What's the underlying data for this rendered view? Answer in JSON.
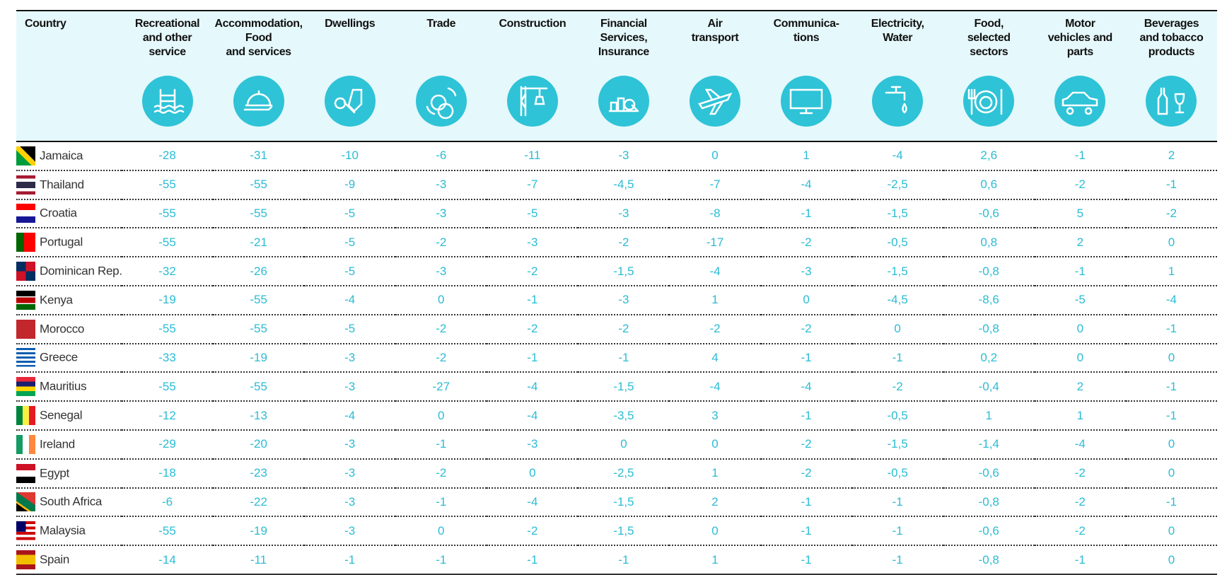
{
  "table": {
    "columns": [
      [
        "Country"
      ],
      [
        "Recreational",
        "and other",
        "service"
      ],
      [
        "Accommodation,",
        "Food",
        "and services"
      ],
      [
        "Dwellings"
      ],
      [
        "Trade"
      ],
      [
        "Construction"
      ],
      [
        "Financial",
        "Services,",
        "Insurance"
      ],
      [
        "Air",
        "transport"
      ],
      [
        "Communica-",
        "tions"
      ],
      [
        "Electricity,",
        "Water"
      ],
      [
        "Food,",
        "selected",
        "sectors"
      ],
      [
        "Motor",
        "vehicles and",
        "parts"
      ],
      [
        "Beverages",
        "and tobacco",
        "products"
      ]
    ],
    "rows": [
      [
        "Jamaica",
        "-28",
        "-31",
        "-10",
        "-6",
        "-11",
        "-3",
        "0",
        "1",
        "-4",
        "2,6",
        "-1",
        "2"
      ],
      [
        "Thailand",
        "-55",
        "-55",
        "-9",
        "-3",
        "-7",
        "-4,5",
        "-7",
        "-4",
        "-2,5",
        "0,6",
        "-2",
        "-1"
      ],
      [
        "Croatia",
        "-55",
        "-55",
        "-5",
        "-3",
        "-5",
        "-3",
        "-8",
        "-1",
        "-1,5",
        "-0,6",
        "5",
        "-2"
      ],
      [
        "Portugal",
        "-55",
        "-21",
        "-5",
        "-2",
        "-3",
        "-2",
        "-17",
        "-2",
        "-0,5",
        "0,8",
        "2",
        "0"
      ],
      [
        "Dominican Rep.",
        "-32",
        "-26",
        "-5",
        "-3",
        "-2",
        "-1,5",
        "-4",
        "-3",
        "-1,5",
        "-0,8",
        "-1",
        "1"
      ],
      [
        "Kenya",
        "-19",
        "-55",
        "-4",
        "0",
        "-1",
        "-3",
        "1",
        "0",
        "-4,5",
        "-8,6",
        "-5",
        "-4"
      ],
      [
        "Morocco",
        "-55",
        "-55",
        "-5",
        "-2",
        "-2",
        "-2",
        "-2",
        "-2",
        "0",
        "-0,8",
        "0",
        "-1"
      ],
      [
        "Greece",
        "-33",
        "-19",
        "-3",
        "-2",
        "-1",
        "-1",
        "4",
        "-1",
        "-1",
        "0,2",
        "0",
        "0"
      ],
      [
        "Mauritius",
        "-55",
        "-55",
        "-3",
        "-27",
        "-4",
        "-1,5",
        "-4",
        "-4",
        "-2",
        "-0,4",
        "2",
        "-1"
      ],
      [
        "Senegal",
        "-12",
        "-13",
        "-4",
        "0",
        "-4",
        "-3,5",
        "3",
        "-1",
        "-0,5",
        "1",
        "1",
        "-1"
      ],
      [
        "Ireland",
        "-29",
        "-20",
        "-3",
        "-1",
        "-3",
        "0",
        "0",
        "-2",
        "-1,5",
        "-1,4",
        "-4",
        "0"
      ],
      [
        "Egypt",
        "-18",
        "-23",
        "-3",
        "-2",
        "0",
        "-2,5",
        "1",
        "-2",
        "-0,5",
        "-0,6",
        "-2",
        "0"
      ],
      [
        "South Africa",
        "-6",
        "-22",
        "-3",
        "-1",
        "-4",
        "-1,5",
        "2",
        "-1",
        "-1",
        "-0,8",
        "-2",
        "-1"
      ],
      [
        "Malaysia",
        "-55",
        "-19",
        "-3",
        "0",
        "-2",
        "-1,5",
        "0",
        "-1",
        "-1",
        "-0,6",
        "-2",
        "0"
      ],
      [
        "Spain",
        "-14",
        "-11",
        "-1",
        "-1",
        "-1",
        "-1",
        "1",
        "-1",
        "-1",
        "-0,8",
        "-1",
        "0"
      ]
    ]
  }
}
